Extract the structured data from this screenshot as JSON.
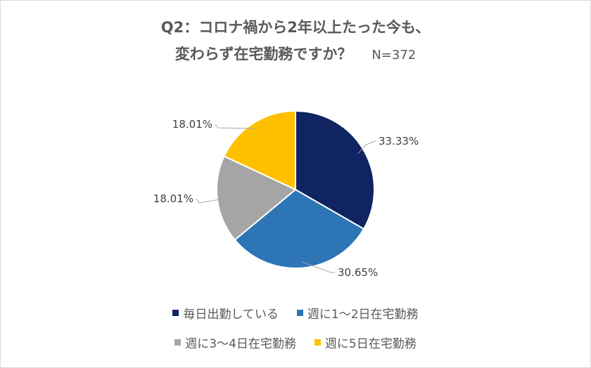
{
  "chart_data": {
    "type": "pie",
    "title_line1": "Q2：コロナ禍から2年以上たった今も、",
    "title_line2": "変わらず在宅勤務ですか？",
    "sample_size": "N=372",
    "slices": [
      {
        "label": "毎日出勤している",
        "value": 33.33,
        "display": "33.33%",
        "color": "#0f2461"
      },
      {
        "label": "週に1〜2日在宅勤務",
        "value": 30.65,
        "display": "30.65%",
        "color": "#2e75b6"
      },
      {
        "label": "週に3〜4日在宅勤務",
        "value": 18.01,
        "display": "18.01%",
        "color": "#a5a5a5"
      },
      {
        "label": "週に5日在宅勤務",
        "value": 18.01,
        "display": "18.01%",
        "color": "#ffc000"
      }
    ],
    "legend_position": "bottom",
    "label_unit": "%"
  }
}
